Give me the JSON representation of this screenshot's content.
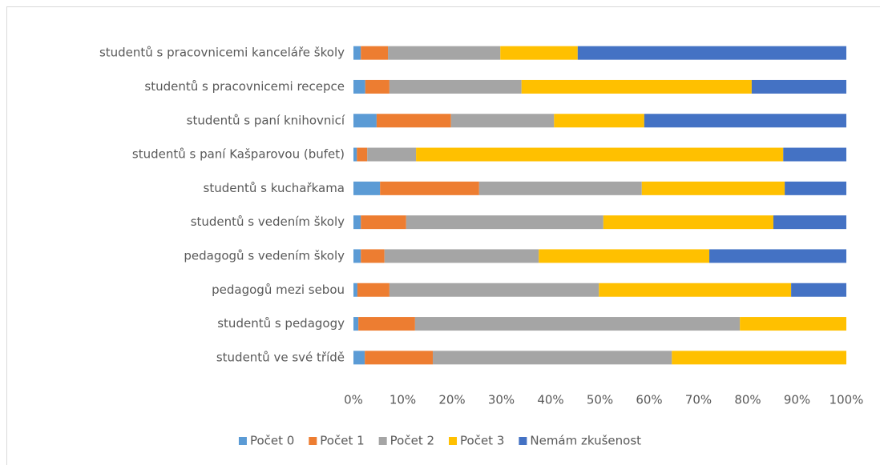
{
  "chart_data": {
    "type": "stacked_barh",
    "categories": [
      "studentů s pracovnicemi kanceláře školy",
      "studentů s pracovnicemi recepce",
      "studentů s paní knihovnicí",
      "studentů s paní Kašparovou (bufet)",
      "studentů s kuchařkama",
      "studentů s vedením školy",
      "pedagogů s vedením školy",
      "pedagogů mezi sebou",
      "studentů s pedagogy",
      "studentů ve své třídě"
    ],
    "series": [
      {
        "name": "Počet 0",
        "color": "#5b9bd5",
        "values": [
          1.5,
          2.4,
          4.7,
          0.7,
          5.4,
          1.5,
          1.5,
          0.8,
          1.0,
          2.3
        ]
      },
      {
        "name": "Počet 1",
        "color": "#ed7d31",
        "values": [
          5.5,
          4.9,
          15.1,
          2.1,
          20.1,
          9.2,
          4.8,
          6.5,
          11.5,
          13.8
        ]
      },
      {
        "name": "Počet 2",
        "color": "#a5a5a5",
        "values": [
          22.8,
          26.8,
          20.9,
          9.9,
          33.0,
          40.0,
          31.3,
          42.5,
          65.9,
          48.5
        ]
      },
      {
        "name": "Počet 3",
        "color": "#ffc000",
        "values": [
          15.7,
          46.7,
          18.3,
          74.5,
          29.0,
          34.5,
          34.6,
          39.0,
          21.6,
          35.4
        ]
      },
      {
        "name": "Nemám zkušenost",
        "color": "#4472c4",
        "values": [
          54.5,
          19.2,
          41.0,
          12.8,
          12.5,
          14.8,
          27.8,
          11.2,
          0,
          0
        ]
      }
    ],
    "xlim": [
      0,
      100
    ],
    "xticks": [
      {
        "value": 0,
        "label": "0%"
      },
      {
        "value": 10,
        "label": "10%"
      },
      {
        "value": 20,
        "label": "20%"
      },
      {
        "value": 30,
        "label": "30%"
      },
      {
        "value": 40,
        "label": "40%"
      },
      {
        "value": 50,
        "label": "50%"
      },
      {
        "value": 60,
        "label": "60%"
      },
      {
        "value": 70,
        "label": "70%"
      },
      {
        "value": 80,
        "label": "80%"
      },
      {
        "value": 90,
        "label": "90%"
      },
      {
        "value": 100,
        "label": "100%"
      }
    ],
    "grid": false,
    "legend": "bottom"
  }
}
